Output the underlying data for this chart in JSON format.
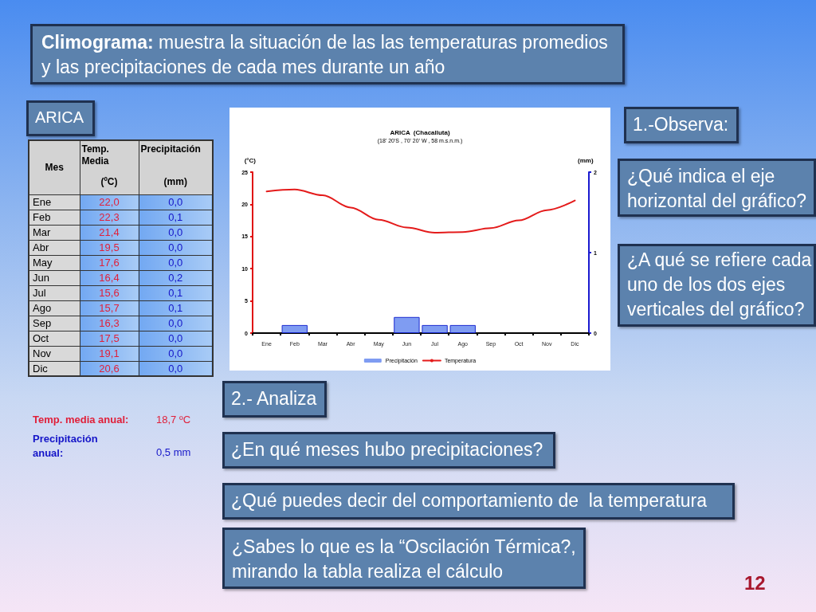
{
  "chart_data": {
    "type": "bar",
    "title": "ARICA  (Chacalluta)",
    "subtitle": "(18' 20'S , 70' 20' W , 58 m.s.n.m.)",
    "ylabel": "(°C)",
    "y2label": "(mm)",
    "categories": [
      "Ene",
      "Feb",
      "Mar",
      "Abr",
      "May",
      "Jun",
      "Jul",
      "Ago",
      "Sep",
      "Oct",
      "Nov",
      "Dic"
    ],
    "series": [
      {
        "name": "Precipitación",
        "axis": "y2",
        "color": "#7f9cf2",
        "values": [
          0.0,
          0.1,
          0.0,
          0.0,
          0.0,
          0.2,
          0.1,
          0.1,
          0.0,
          0.0,
          0.0,
          0.0
        ]
      },
      {
        "name": "Temperatura",
        "type": "line",
        "color": "#e41b1b",
        "values": [
          22.0,
          22.3,
          21.4,
          19.5,
          17.6,
          16.4,
          15.6,
          15.7,
          16.3,
          17.5,
          19.1,
          20.6
        ]
      }
    ],
    "ylim": [
      0,
      25
    ],
    "yticks": [
      0,
      5,
      10,
      15,
      20,
      25
    ],
    "y2lim": [
      0,
      2
    ],
    "y2ticks": [
      0,
      1,
      2
    ],
    "legend": "bottom",
    "marker": "none",
    "annotations": [
      "Climograma:",
      "muestra la situación de las las temperaturas promedios y las precipitaciones de cada mes durante un año",
      "ARICA",
      "1.-Observa:",
      "¿Qué indica el eje horizontal del gráfico?",
      "¿A qué se refiere cada uno de los dos ejes verticales del gráfico?",
      "2.- Analiza",
      "¿En qué meses hubo precipitaciones?",
      "¿Qué puedes decir del comportamiento de  la temperatura",
      "¿Sabes lo que es la “Oscilación Térmica?, mirando la tabla realiza el cálculo",
      "Mes",
      "Temp. Media",
      "(ºC)",
      "Precipitación",
      "(mm)",
      "Temp. media anual:",
      "18,7 ºC",
      "Precipitación anual:",
      "0,5 mm",
      "12",
      "22,0",
      "0,0",
      "22,3",
      "0,1",
      "21,4",
      "0,0",
      "19,5",
      "0,0",
      "17,6",
      "0,0",
      "16,4",
      "0,2",
      "15,6",
      "0,1",
      "15,7",
      "0,1",
      "16,3",
      "0,0",
      "17,5",
      "0,0",
      "19,1",
      "0,0",
      "20,6",
      "0,0"
    ]
  }
}
